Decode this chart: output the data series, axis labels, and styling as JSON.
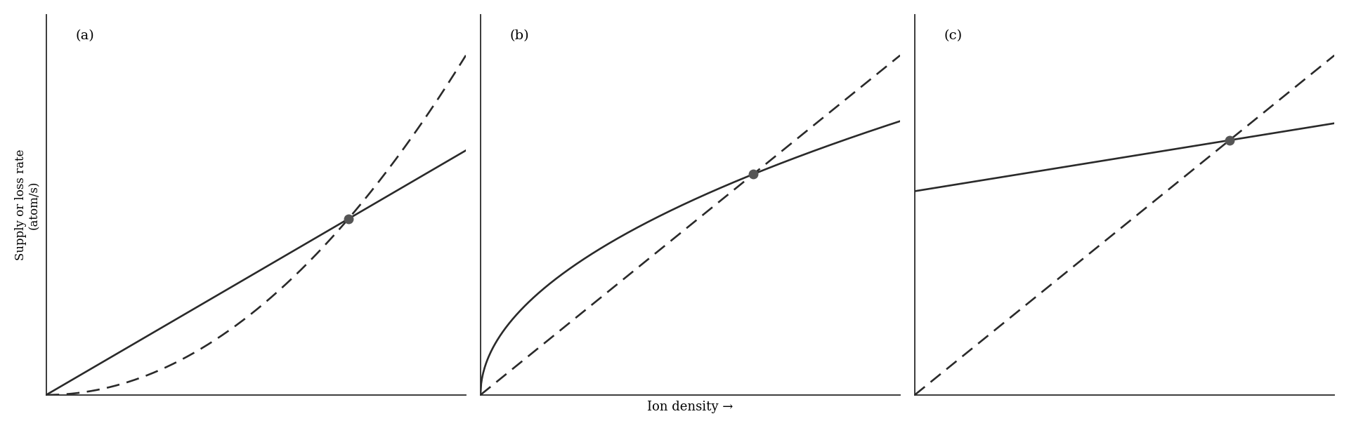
{
  "background_color": "#ffffff",
  "panel_bg": "#ffffff",
  "line_color": "#2a2a2a",
  "dot_color": "#555555",
  "ylabel": "Supply or loss rate\n(atom/s)",
  "xlabel": "Ion density →",
  "panels": [
    "(a)",
    "(b)",
    "(c)"
  ],
  "xlabel_fontsize": 13,
  "ylabel_fontsize": 12,
  "panel_label_fontsize": 14,
  "dot_size": 9,
  "line_width": 1.9,
  "dash_style": [
    7,
    4
  ],
  "figsize": [
    19.2,
    6.1
  ],
  "dpi": 100
}
